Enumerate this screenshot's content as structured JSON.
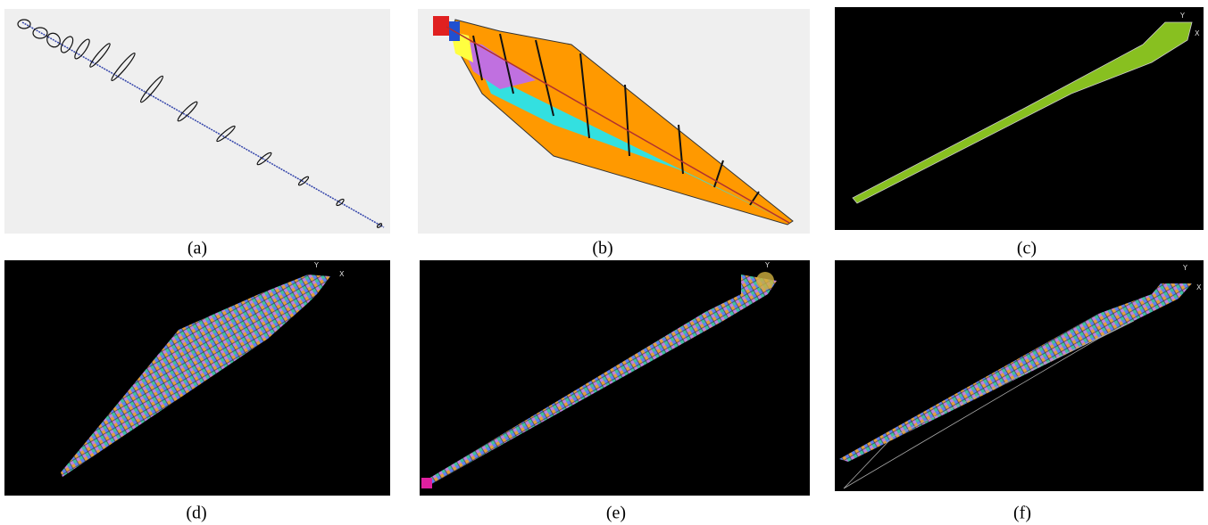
{
  "figure": {
    "panels": [
      {
        "caption": "(a)"
      },
      {
        "caption": "(b)"
      },
      {
        "caption": "(c)",
        "axis_labels": [
          "Y",
          "X"
        ]
      },
      {
        "caption": "(d)",
        "axis_labels": [
          "Y",
          "X"
        ]
      },
      {
        "caption": "(e)",
        "axis_labels": [
          "Y"
        ]
      },
      {
        "caption": "(f)",
        "axis_labels": [
          "Y",
          "X"
        ]
      }
    ]
  }
}
